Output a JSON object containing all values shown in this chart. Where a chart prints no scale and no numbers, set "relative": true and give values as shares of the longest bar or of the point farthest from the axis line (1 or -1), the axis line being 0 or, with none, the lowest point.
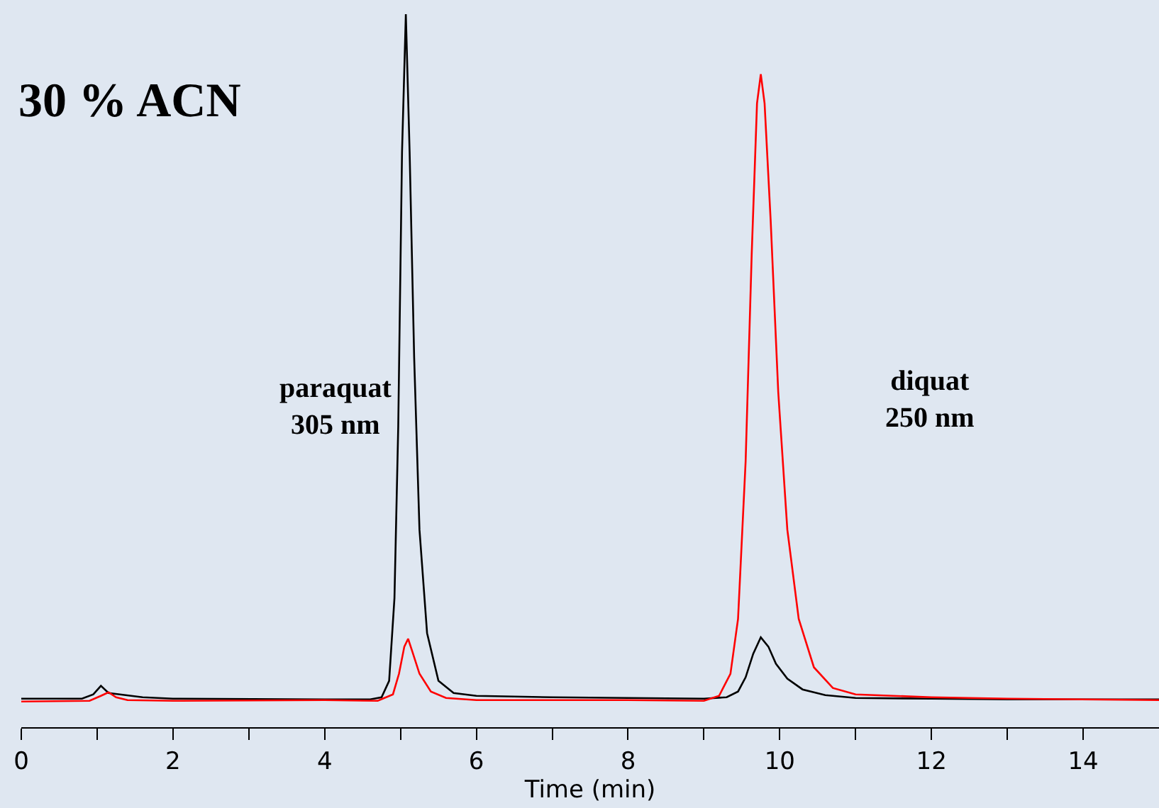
{
  "chart_data": {
    "type": "line",
    "relative": true,
    "title": "30 % ACN",
    "xlabel": "Time (min)",
    "annotations": [
      "paraquat\n305 nm",
      "diquat\n250 nm"
    ],
    "xlim": [
      0,
      15
    ],
    "xticks": [
      0,
      {
        "value": 1,
        "label": null
      },
      2,
      {
        "value": 3,
        "label": null
      },
      4,
      {
        "value": 5,
        "label": null
      },
      6,
      {
        "value": 7,
        "label": null
      },
      8,
      {
        "value": 9,
        "label": null
      },
      10,
      {
        "value": 11,
        "label": null
      },
      12,
      {
        "value": 13,
        "label": null
      },
      14
    ],
    "tick_labels": "x",
    "grid": false,
    "marker": "none",
    "line_style": "solid",
    "series": [
      {
        "color": "#000000",
        "x": [
          0,
          0.8,
          0.95,
          1.05,
          1.15,
          1.3,
          1.6,
          2,
          4,
          4.6,
          4.75,
          4.85,
          4.92,
          4.97,
          5.02,
          5.07,
          5.12,
          5.18,
          5.25,
          5.35,
          5.5,
          5.7,
          6,
          7,
          8,
          9,
          9.3,
          9.45,
          9.55,
          9.65,
          9.75,
          9.85,
          9.95,
          10.1,
          10.3,
          10.6,
          11,
          12,
          13,
          15
        ],
        "values": [
          0.04,
          0.04,
          0.046,
          0.058,
          0.048,
          0.046,
          0.042,
          0.04,
          0.039,
          0.039,
          0.042,
          0.065,
          0.181,
          0.422,
          0.807,
          1.0,
          0.807,
          0.518,
          0.277,
          0.132,
          0.065,
          0.048,
          0.044,
          0.042,
          0.041,
          0.04,
          0.042,
          0.05,
          0.07,
          0.103,
          0.126,
          0.113,
          0.089,
          0.068,
          0.053,
          0.045,
          0.041,
          0.04,
          0.039,
          0.039
        ]
      },
      {
        "color": "#ff0000",
        "x": [
          0,
          0.9,
          1.05,
          1.15,
          1.25,
          1.4,
          2,
          4,
          4.7,
          4.9,
          4.98,
          5.05,
          5.1,
          5.15,
          5.25,
          5.4,
          5.6,
          6,
          8,
          9.0,
          9.2,
          9.35,
          9.45,
          9.55,
          9.63,
          9.7,
          9.75,
          9.8,
          9.88,
          9.98,
          10.1,
          10.25,
          10.45,
          10.7,
          11,
          12,
          13,
          15
        ],
        "values": [
          0.036,
          0.037,
          0.044,
          0.049,
          0.042,
          0.038,
          0.037,
          0.038,
          0.037,
          0.046,
          0.075,
          0.113,
          0.124,
          0.108,
          0.075,
          0.05,
          0.041,
          0.038,
          0.038,
          0.037,
          0.044,
          0.075,
          0.152,
          0.373,
          0.663,
          0.875,
          0.916,
          0.875,
          0.711,
          0.47,
          0.277,
          0.152,
          0.084,
          0.055,
          0.046,
          0.042,
          0.04,
          0.038
        ]
      }
    ]
  }
}
